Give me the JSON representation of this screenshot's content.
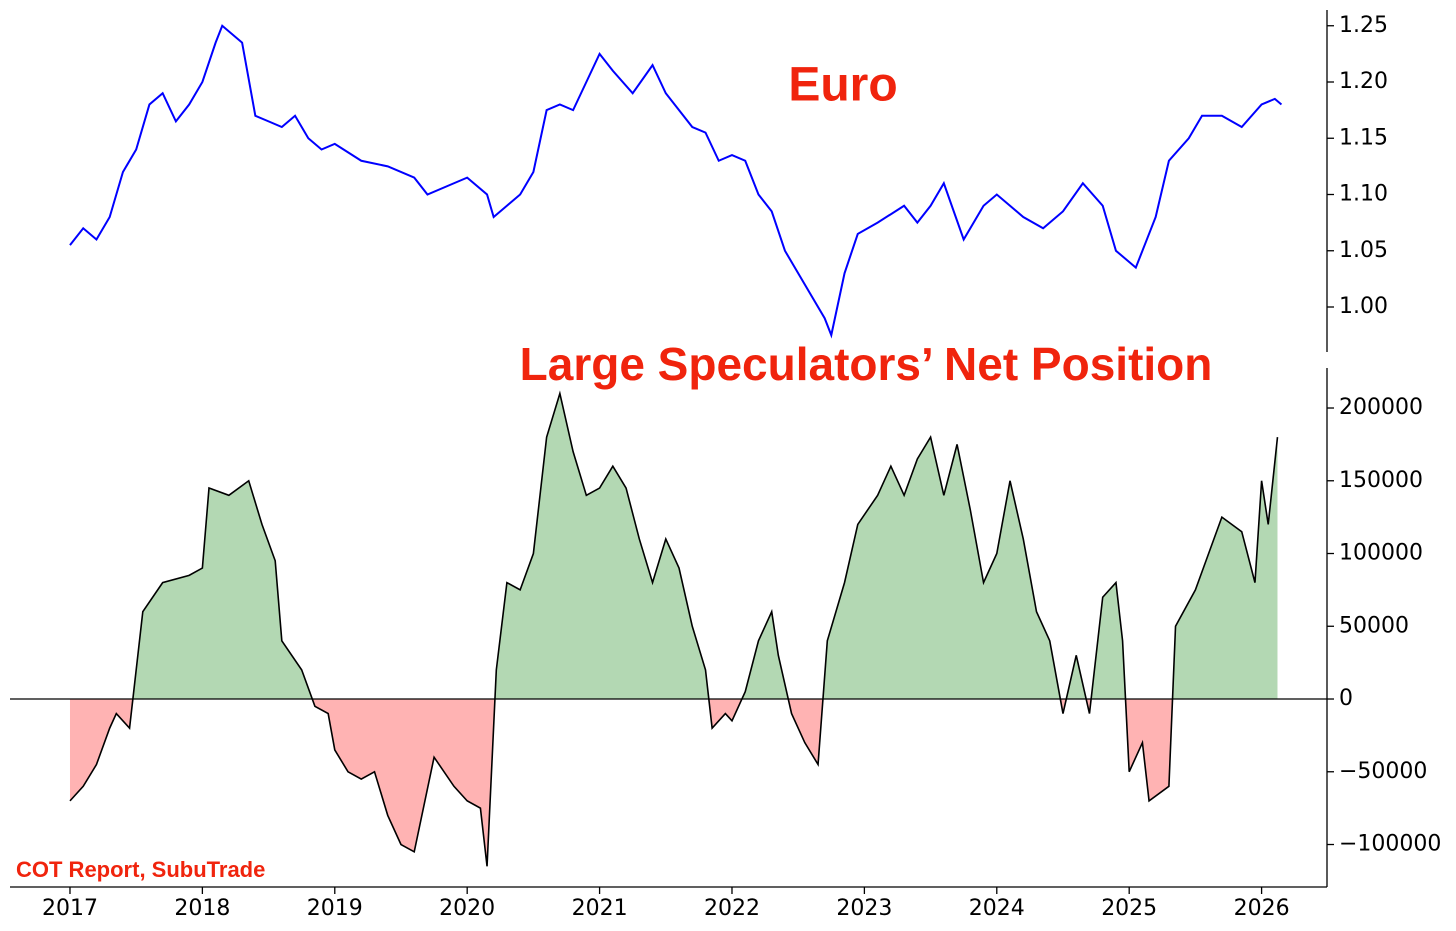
{
  "chart_data": [
    {
      "type": "line",
      "title": "Euro",
      "color": "#0000ff",
      "xlim": [
        2016.547,
        2026.494
      ],
      "ylim": [
        0.96,
        1.264
      ],
      "yticks": [
        {
          "value": 1,
          "label": "1.00"
        },
        1.05,
        {
          "value": 1.1,
          "label": "1.10"
        },
        1.15,
        {
          "value": 1.2,
          "label": "1.20"
        },
        1.25
      ],
      "x": [
        2017.0,
        2017.1,
        2017.2,
        2017.3,
        2017.4,
        2017.5,
        2017.6,
        2017.7,
        2017.8,
        2017.9,
        2018.0,
        2018.1,
        2018.15,
        2018.3,
        2018.4,
        2018.5,
        2018.6,
        2018.7,
        2018.8,
        2018.9,
        2019.0,
        2019.2,
        2019.4,
        2019.6,
        2019.7,
        2019.9,
        2020.0,
        2020.15,
        2020.2,
        2020.3,
        2020.4,
        2020.5,
        2020.6,
        2020.7,
        2020.8,
        2020.9,
        2021.0,
        2021.1,
        2021.25,
        2021.4,
        2021.5,
        2021.6,
        2021.7,
        2021.8,
        2021.9,
        2022.0,
        2022.1,
        2022.2,
        2022.3,
        2022.4,
        2022.5,
        2022.6,
        2022.7,
        2022.75,
        2022.85,
        2022.95,
        2023.1,
        2023.3,
        2023.4,
        2023.5,
        2023.6,
        2023.75,
        2023.9,
        2024.0,
        2024.2,
        2024.35,
        2024.5,
        2024.65,
        2024.8,
        2024.9,
        2025.05,
        2025.2,
        2025.3,
        2025.45,
        2025.55,
        2025.7,
        2025.85,
        2026.0,
        2026.1,
        2026.15
      ],
      "values": [
        1.055,
        1.07,
        1.06,
        1.08,
        1.12,
        1.14,
        1.18,
        1.19,
        1.165,
        1.18,
        1.2,
        1.235,
        1.25,
        1.235,
        1.17,
        1.165,
        1.16,
        1.17,
        1.15,
        1.14,
        1.145,
        1.13,
        1.125,
        1.115,
        1.1,
        1.11,
        1.115,
        1.1,
        1.08,
        1.09,
        1.1,
        1.12,
        1.175,
        1.18,
        1.175,
        1.2,
        1.225,
        1.21,
        1.19,
        1.215,
        1.19,
        1.175,
        1.16,
        1.155,
        1.13,
        1.135,
        1.13,
        1.1,
        1.085,
        1.05,
        1.03,
        1.01,
        0.99,
        0.975,
        1.03,
        1.065,
        1.075,
        1.09,
        1.075,
        1.09,
        1.11,
        1.06,
        1.09,
        1.1,
        1.08,
        1.07,
        1.085,
        1.11,
        1.09,
        1.05,
        1.035,
        1.08,
        1.13,
        1.15,
        1.17,
        1.17,
        1.16,
        1.18,
        1.185,
        1.18
      ]
    },
    {
      "type": "area",
      "title": "Large Speculators’ Net Position",
      "annotation": "COT Report, SubuTrade",
      "color": "#000000",
      "positive_color": "#b3d8b3",
      "negative_color": "#ffb3b3",
      "xlim": [
        2016.547,
        2026.494
      ],
      "ylim": [
        -129200,
        227500
      ],
      "xticks": [
        2017,
        2018,
        2019,
        2020,
        2021,
        2022,
        2023,
        2024,
        2025,
        2026
      ],
      "yticks": [
        {
          "value": -100000,
          "label": "−100000"
        },
        {
          "value": -50000,
          "label": "−50000"
        },
        0,
        50000,
        100000,
        150000,
        200000
      ],
      "x": [
        2017.0,
        2017.1,
        2017.2,
        2017.3,
        2017.35,
        2017.45,
        2017.55,
        2017.7,
        2017.9,
        2018.0,
        2018.05,
        2018.2,
        2018.35,
        2018.45,
        2018.55,
        2018.6,
        2018.75,
        2018.85,
        2018.95,
        2019.0,
        2019.1,
        2019.2,
        2019.3,
        2019.4,
        2019.5,
        2019.6,
        2019.75,
        2019.9,
        2020.0,
        2020.1,
        2020.15,
        2020.22,
        2020.3,
        2020.4,
        2020.5,
        2020.6,
        2020.7,
        2020.8,
        2020.9,
        2021.0,
        2021.1,
        2021.2,
        2021.3,
        2021.4,
        2021.5,
        2021.6,
        2021.7,
        2021.8,
        2021.85,
        2021.95,
        2022.0,
        2022.1,
        2022.2,
        2022.3,
        2022.35,
        2022.45,
        2022.55,
        2022.65,
        2022.72,
        2022.85,
        2022.95,
        2023.1,
        2023.2,
        2023.3,
        2023.4,
        2023.5,
        2023.6,
        2023.7,
        2023.8,
        2023.9,
        2024.0,
        2024.1,
        2024.2,
        2024.3,
        2024.4,
        2024.5,
        2024.6,
        2024.7,
        2024.8,
        2024.9,
        2024.95,
        2025.0,
        2025.1,
        2025.15,
        2025.3,
        2025.35,
        2025.5,
        2025.6,
        2025.7,
        2025.85,
        2025.95,
        2026.0,
        2026.05,
        2026.12
      ],
      "values": [
        -70000,
        -60000,
        -45000,
        -20000,
        -10000,
        -20000,
        60000,
        80000,
        85000,
        90000,
        145000,
        140000,
        150000,
        120000,
        95000,
        40000,
        20000,
        -5000,
        -10000,
        -35000,
        -50000,
        -55000,
        -50000,
        -80000,
        -100000,
        -105000,
        -40000,
        -60000,
        -70000,
        -75000,
        -115000,
        20000,
        80000,
        75000,
        100000,
        180000,
        210000,
        170000,
        140000,
        145000,
        160000,
        145000,
        110000,
        80000,
        110000,
        90000,
        50000,
        20000,
        -20000,
        -10000,
        -15000,
        5000,
        40000,
        60000,
        30000,
        -10000,
        -30000,
        -45000,
        40000,
        80000,
        120000,
        140000,
        160000,
        140000,
        165000,
        180000,
        140000,
        175000,
        130000,
        80000,
        100000,
        150000,
        110000,
        60000,
        40000,
        -10000,
        30000,
        -10000,
        70000,
        80000,
        40000,
        -50000,
        -30000,
        -70000,
        -60000,
        50000,
        75000,
        100000,
        125000,
        115000,
        80000,
        150000,
        120000,
        180000
      ]
    }
  ]
}
